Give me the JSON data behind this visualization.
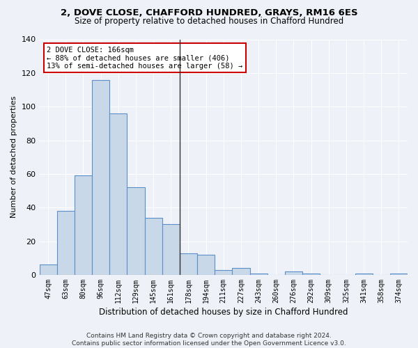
{
  "title": "2, DOVE CLOSE, CHAFFORD HUNDRED, GRAYS, RM16 6ES",
  "subtitle": "Size of property relative to detached houses in Chafford Hundred",
  "xlabel": "Distribution of detached houses by size in Chafford Hundred",
  "ylabel": "Number of detached properties",
  "categories": [
    "47sqm",
    "63sqm",
    "80sqm",
    "96sqm",
    "112sqm",
    "129sqm",
    "145sqm",
    "161sqm",
    "178sqm",
    "194sqm",
    "211sqm",
    "227sqm",
    "243sqm",
    "260sqm",
    "276sqm",
    "292sqm",
    "309sqm",
    "325sqm",
    "341sqm",
    "358sqm",
    "374sqm"
  ],
  "values": [
    6,
    38,
    59,
    116,
    96,
    52,
    34,
    30,
    13,
    12,
    3,
    4,
    1,
    0,
    2,
    1,
    0,
    0,
    1,
    0,
    1
  ],
  "bar_color": "#c8d8e8",
  "bar_edge_color": "#5b8fc9",
  "background_color": "#eef2f8",
  "grid_color": "#ffffff",
  "annotation_line1": "2 DOVE CLOSE: 166sqm",
  "annotation_line2": "← 88% of detached houses are smaller (406)",
  "annotation_line3": "13% of semi-detached houses are larger (58) →",
  "annotation_box_color": "#ffffff",
  "annotation_box_edge": "#cc0000",
  "vline_bin": 7,
  "vline_color": "#333333",
  "footnote": "Contains HM Land Registry data © Crown copyright and database right 2024.\nContains public sector information licensed under the Open Government Licence v3.0.",
  "ylim": [
    0,
    140
  ],
  "yticks": [
    0,
    20,
    40,
    60,
    80,
    100,
    120,
    140
  ]
}
